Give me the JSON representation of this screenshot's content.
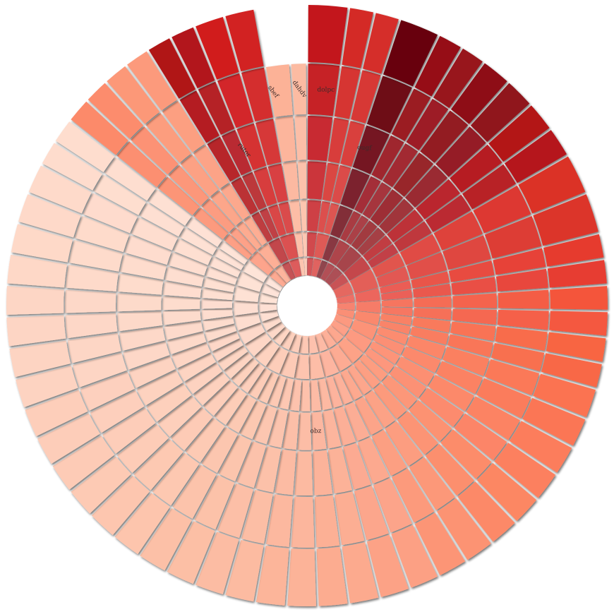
{
  "chart_data": {
    "type": "sunburst",
    "title": "",
    "ring_count": 7,
    "labels": [
      {
        "text": "rutor",
        "angle_deg": 338,
        "ring": 4
      },
      {
        "text": "sbef",
        "angle_deg": 351,
        "ring": 5
      },
      {
        "text": "dahdv",
        "angle_deg": 358,
        "ring": 5
      },
      {
        "text": "dolpc",
        "angle_deg": 5,
        "ring": 5
      },
      {
        "text": "ougf",
        "angle_deg": 20,
        "ring": 4
      },
      {
        "text": "obz",
        "angle_deg": 176,
        "ring": 3
      }
    ],
    "sectors": [
      {
        "start": 0,
        "end": 8,
        "radial_splits": 7,
        "outer_ring": 7,
        "color": "#c3161b"
      },
      {
        "start": 8,
        "end": 18,
        "radial_splits": 7,
        "outer_ring": 7,
        "color": "#d42a26"
      },
      {
        "start": 18,
        "end": 26,
        "radial_splits": 7,
        "outer_ring": 7,
        "color": "#67000d"
      },
      {
        "start": 26,
        "end": 36,
        "radial_splits": 7,
        "outer_ring": 7,
        "color": "#960f18"
      },
      {
        "start": 36,
        "end": 48,
        "radial_splits": 7,
        "outer_ring": 7,
        "color": "#8e0f17"
      },
      {
        "start": 48,
        "end": 60,
        "radial_splits": 7,
        "outer_ring": 7,
        "color": "#b31218"
      },
      {
        "start": 60,
        "end": 76,
        "radial_splits": 6,
        "outer_ring": 7,
        "color": "#db3027"
      },
      {
        "start": 76,
        "end": 86,
        "radial_splits": 6,
        "outer_ring": 7,
        "color": "#e63a2e"
      },
      {
        "start": 86,
        "end": 96,
        "radial_splits": 6,
        "outer_ring": 7,
        "color": "#f4553b"
      },
      {
        "start": 96,
        "end": 106,
        "radial_splits": 6,
        "outer_ring": 7,
        "color": "#f86543"
      },
      {
        "start": 106,
        "end": 118,
        "radial_splits": 6,
        "outer_ring": 7,
        "color": "#fb7351"
      },
      {
        "start": 118,
        "end": 130,
        "radial_splits": 6,
        "outer_ring": 7,
        "color": "#fc7d5c"
      },
      {
        "start": 130,
        "end": 142,
        "radial_splits": 6,
        "outer_ring": 7,
        "color": "#fc8764"
      },
      {
        "start": 142,
        "end": 154,
        "radial_splits": 6,
        "outer_ring": 7,
        "color": "#fc9373"
      },
      {
        "start": 154,
        "end": 166,
        "radial_splits": 6,
        "outer_ring": 7,
        "color": "#fca084"
      },
      {
        "start": 166,
        "end": 178,
        "radial_splits": 6,
        "outer_ring": 7,
        "color": "#fcaa8e"
      },
      {
        "start": 178,
        "end": 190,
        "radial_splits": 6,
        "outer_ring": 7,
        "color": "#fcb398"
      },
      {
        "start": 190,
        "end": 202,
        "radial_splits": 6,
        "outer_ring": 7,
        "color": "#fcbba1"
      },
      {
        "start": 202,
        "end": 214,
        "radial_splits": 6,
        "outer_ring": 7,
        "color": "#fcbfa5"
      },
      {
        "start": 214,
        "end": 226,
        "radial_splits": 6,
        "outer_ring": 7,
        "color": "#fdc5ad"
      },
      {
        "start": 226,
        "end": 238,
        "radial_splits": 6,
        "outer_ring": 7,
        "color": "#fdcab4"
      },
      {
        "start": 238,
        "end": 250,
        "radial_splits": 6,
        "outer_ring": 7,
        "color": "#fdcdb9"
      },
      {
        "start": 250,
        "end": 262,
        "radial_splits": 7,
        "outer_ring": 7,
        "color": "#fdd3c1"
      },
      {
        "start": 262,
        "end": 274,
        "radial_splits": 7,
        "outer_ring": 7,
        "color": "#fdd5c4"
      },
      {
        "start": 274,
        "end": 286,
        "radial_splits": 7,
        "outer_ring": 7,
        "color": "#fed8c7"
      },
      {
        "start": 286,
        "end": 298,
        "radial_splits": 7,
        "outer_ring": 7,
        "color": "#fed9c9"
      },
      {
        "start": 298,
        "end": 308,
        "radial_splits": 7,
        "outer_ring": 7,
        "color": "#fedccd"
      },
      {
        "start": 308,
        "end": 318,
        "radial_splits": 7,
        "outer_ring": 7,
        "color": "#fc8a6a"
      },
      {
        "start": 318,
        "end": 328,
        "radial_splits": 7,
        "outer_ring": 7,
        "color": "#fc9878"
      },
      {
        "start": 328,
        "end": 338,
        "radial_splits": 7,
        "outer_ring": 7,
        "color": "#b01217"
      },
      {
        "start": 338,
        "end": 350,
        "radial_splits": 7,
        "outer_ring": 7,
        "color": "#d11e1f"
      },
      {
        "start": 350,
        "end": 356,
        "radial_splits": 7,
        "outer_ring": 6,
        "color": "#fcae92"
      },
      {
        "start": 356,
        "end": 360,
        "radial_splits": 7,
        "outer_ring": 6,
        "color": "#fcb89e"
      }
    ]
  }
}
